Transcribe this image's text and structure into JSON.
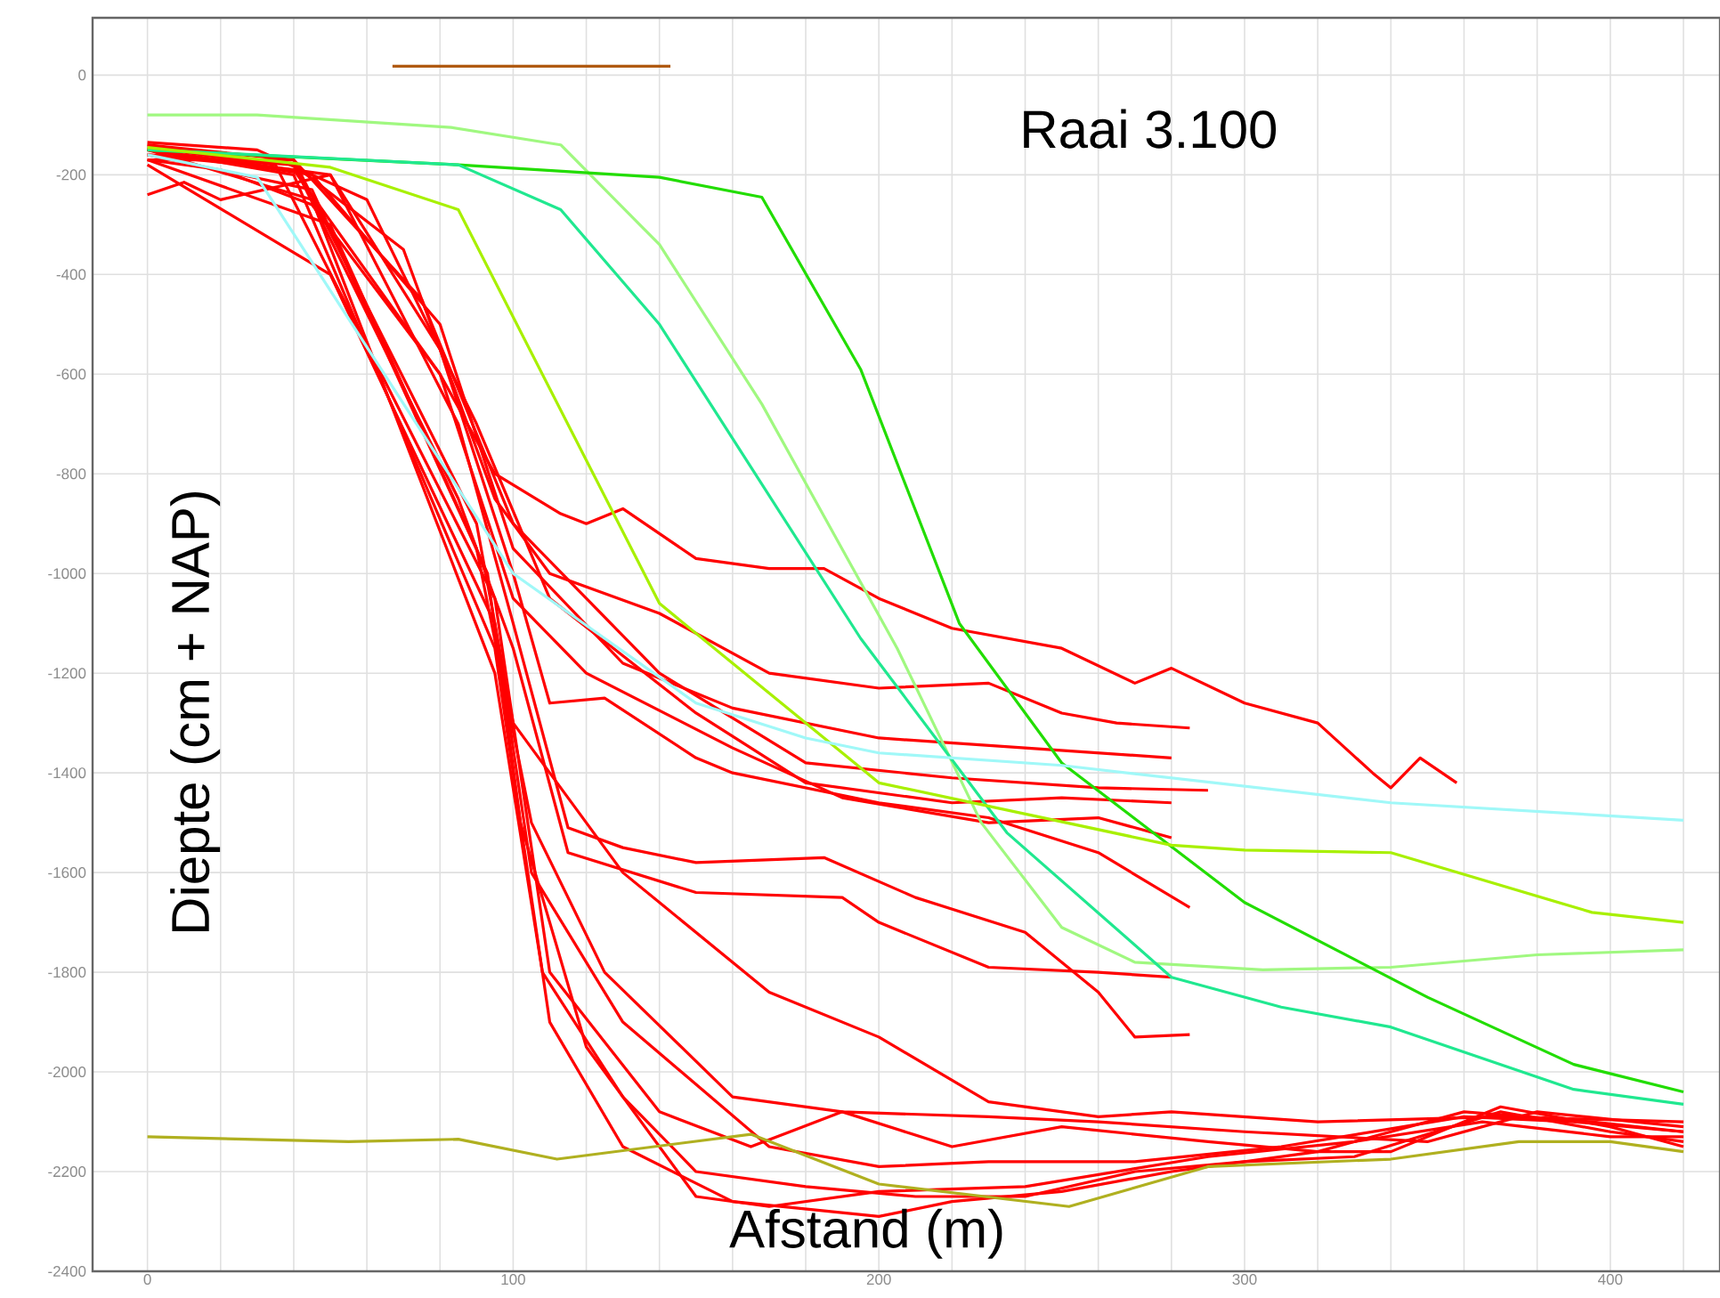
{
  "chart_data": {
    "type": "line",
    "title": "Raai 3.100",
    "xlabel": "Afstand (m)",
    "ylabel": "Diepte (cm + NAP)",
    "xlim": [
      -15,
      430
    ],
    "ylim": [
      -2400,
      115
    ],
    "xticks": [
      0,
      {
        "value": 20,
        "label": null
      },
      {
        "value": 40,
        "label": null
      },
      {
        "value": 60,
        "label": null
      },
      {
        "value": 80,
        "label": null
      },
      100,
      {
        "value": 120,
        "label": null
      },
      {
        "value": 140,
        "label": null
      },
      {
        "value": 160,
        "label": null
      },
      {
        "value": 180,
        "label": null
      },
      200,
      {
        "value": 220,
        "label": null
      },
      {
        "value": 240,
        "label": null
      },
      {
        "value": 260,
        "label": null
      },
      {
        "value": 280,
        "label": null
      },
      300,
      {
        "value": 320,
        "label": null
      },
      {
        "value": 340,
        "label": null
      },
      {
        "value": 360,
        "label": null
      },
      {
        "value": 380,
        "label": null
      },
      400,
      {
        "value": 420,
        "label": null
      }
    ],
    "yticks": [
      -2400,
      -2200,
      -2000,
      -1800,
      -1600,
      -1400,
      -1200,
      -1000,
      -800,
      -600,
      -400,
      -200,
      0
    ],
    "grid": true,
    "series": [
      {
        "color": "#b05a10",
        "x": [
          67,
          143
        ],
        "values": [
          18,
          18
        ]
      },
      {
        "color": "#ff0000",
        "x": [
          0,
          20,
          45,
          80,
          95,
          113,
          120,
          130,
          150,
          170,
          185,
          200,
          220,
          250,
          270,
          280,
          300,
          320,
          335,
          340,
          348,
          358
        ],
        "values": [
          -170,
          -190,
          -260,
          -600,
          -800,
          -880,
          -900,
          -870,
          -970,
          -990,
          -990,
          -1050,
          -1110,
          -1150,
          -1220,
          -1190,
          -1260,
          -1300,
          -1400,
          -1430,
          -1370,
          -1420
        ]
      },
      {
        "color": "#ff0000",
        "x": [
          0,
          40,
          70,
          95,
          110,
          140,
          170,
          200,
          230,
          250,
          265,
          285
        ],
        "values": [
          -160,
          -180,
          -350,
          -850,
          -1000,
          -1080,
          -1200,
          -1230,
          -1220,
          -1280,
          -1300,
          -1310
        ]
      },
      {
        "color": "#ff0000",
        "x": [
          0,
          45,
          80,
          100,
          130,
          160,
          200,
          240,
          280
        ],
        "values": [
          -150,
          -200,
          -500,
          -950,
          -1180,
          -1270,
          -1330,
          -1350,
          -1370
        ]
      },
      {
        "color": "#ff0000",
        "x": [
          0,
          40,
          75,
          100,
          140,
          180,
          220,
          260,
          290
        ],
        "values": [
          -140,
          -170,
          -450,
          -900,
          -1200,
          -1380,
          -1410,
          -1430,
          -1435
        ]
      },
      {
        "color": "#ff0000",
        "x": [
          0,
          30,
          60,
          90,
          110,
          150,
          180,
          220,
          250,
          280
        ],
        "values": [
          -135,
          -150,
          -250,
          -700,
          -1050,
          -1280,
          -1420,
          -1460,
          -1450,
          -1460
        ]
      },
      {
        "color": "#ff0000",
        "x": [
          0,
          40,
          80,
          100,
          120,
          160,
          190,
          230,
          260,
          280
        ],
        "values": [
          -160,
          -190,
          -600,
          -1050,
          -1200,
          -1350,
          -1450,
          -1500,
          -1490,
          -1530
        ]
      },
      {
        "color": "#ff0000",
        "x": [
          0,
          10,
          20,
          50,
          80,
          100,
          110,
          125,
          150,
          160,
          200,
          230,
          260,
          285
        ],
        "values": [
          -240,
          -215,
          -250,
          -200,
          -550,
          -1000,
          -1260,
          -1250,
          -1370,
          -1400,
          -1460,
          -1490,
          -1560,
          -1670
        ]
      },
      {
        "color": "#ff0000",
        "x": [
          0,
          50,
          85,
          100,
          115,
          130,
          150,
          185,
          210,
          240,
          260,
          270,
          285
        ],
        "values": [
          -150,
          -200,
          -700,
          -1100,
          -1510,
          -1550,
          -1580,
          -1570,
          -1650,
          -1720,
          -1840,
          -1930,
          -1925
        ]
      },
      {
        "color": "#ff0000",
        "x": [
          0,
          40,
          85,
          100,
          115,
          150,
          190,
          200,
          230,
          260,
          280
        ],
        "values": [
          -140,
          -180,
          -850,
          -1150,
          -1560,
          -1640,
          -1650,
          -1700,
          -1790,
          -1800,
          -1810
        ]
      },
      {
        "color": "#ff0000",
        "x": [
          0,
          50,
          90,
          105,
          125,
          160,
          190,
          230,
          260,
          300,
          350,
          380,
          420
        ],
        "values": [
          -170,
          -300,
          -950,
          -1500,
          -1800,
          -2050,
          -2080,
          -2090,
          -2100,
          -2120,
          -2140,
          -2080,
          -2110
        ]
      },
      {
        "color": "#ff0000",
        "x": [
          0,
          50,
          95,
          105,
          130,
          170,
          200,
          230,
          270,
          310,
          360,
          390,
          420
        ],
        "values": [
          -180,
          -400,
          -1100,
          -1600,
          -1900,
          -2150,
          -2190,
          -2180,
          -2180,
          -2150,
          -2090,
          -2100,
          -2120
        ]
      },
      {
        "color": "#ff0000",
        "x": [
          0,
          45,
          95,
          108,
          130,
          150,
          180,
          210,
          240,
          270,
          300,
          330,
          370,
          400,
          420
        ],
        "values": [
          -150,
          -250,
          -1200,
          -1800,
          -2050,
          -2200,
          -2230,
          -2250,
          -2250,
          -2200,
          -2180,
          -2170,
          -2080,
          -2120,
          -2140
        ]
      },
      {
        "color": "#ff0000",
        "x": [
          0,
          40,
          95,
          110,
          130,
          160,
          200,
          220,
          250,
          280,
          320,
          340,
          370,
          400,
          420
        ],
        "values": [
          -150,
          -200,
          -1150,
          -1900,
          -2150,
          -2260,
          -2290,
          -2260,
          -2240,
          -2200,
          -2160,
          -2160,
          -2070,
          -2110,
          -2150
        ]
      },
      {
        "color": "#ff0000",
        "x": [
          0,
          45,
          93,
          102,
          120,
          150,
          170,
          200,
          240,
          290,
          330,
          365,
          400,
          420
        ],
        "values": [
          -160,
          -230,
          -1000,
          -1500,
          -1950,
          -2250,
          -2270,
          -2240,
          -2230,
          -2170,
          -2140,
          -2100,
          -2130,
          -2130
        ]
      },
      {
        "color": "#ff0000",
        "x": [
          0,
          35,
          95,
          110,
          140,
          165,
          190,
          220,
          250,
          290,
          320,
          360,
          395,
          420
        ],
        "values": [
          -145,
          -180,
          -1050,
          -1800,
          -2080,
          -2150,
          -2080,
          -2150,
          -2110,
          -2140,
          -2160,
          -2080,
          -2100,
          -2120
        ]
      },
      {
        "color": "#ff0000",
        "x": [
          0,
          40,
          90,
          100,
          130,
          170,
          200,
          230,
          260,
          280,
          320,
          370,
          420
        ],
        "values": [
          -170,
          -170,
          -900,
          -1300,
          -1600,
          -1840,
          -1930,
          -2060,
          -2090,
          -2080,
          -2100,
          -2090,
          -2100
        ]
      },
      {
        "color": "#a0f880",
        "x": [
          0,
          30,
          83,
          113,
          140,
          168,
          205,
          228,
          250,
          270,
          305,
          340,
          380,
          420
        ],
        "values": [
          -80,
          -80,
          -105,
          -140,
          -340,
          -660,
          -1150,
          -1500,
          -1710,
          -1780,
          -1795,
          -1790,
          -1765,
          -1755
        ]
      },
      {
        "color": "#22dd00",
        "x": [
          0,
          85,
          140,
          168,
          195,
          222,
          250,
          300,
          350,
          390,
          420
        ],
        "values": [
          -150,
          -180,
          -205,
          -245,
          -590,
          -1100,
          -1380,
          -1660,
          -1850,
          -1985,
          -2040
        ]
      },
      {
        "color": "#20e890",
        "x": [
          0,
          30,
          85,
          113,
          140,
          195,
          235,
          280,
          310,
          340,
          390,
          420
        ],
        "values": [
          -150,
          -160,
          -180,
          -270,
          -500,
          -1130,
          -1520,
          -1810,
          -1870,
          -1910,
          -2035,
          -2065
        ]
      },
      {
        "color": "#a8f000",
        "x": [
          0,
          50,
          85,
          140,
          200,
          280,
          300,
          340,
          395,
          420
        ],
        "values": [
          -145,
          -185,
          -270,
          -1060,
          -1420,
          -1545,
          -1555,
          -1560,
          -1680,
          -1700
        ]
      },
      {
        "color": "#a0f8f8",
        "x": [
          0,
          30,
          100,
          150,
          180,
          200,
          250,
          340,
          420
        ],
        "values": [
          -160,
          -205,
          -1000,
          -1260,
          -1330,
          -1360,
          -1385,
          -1460,
          -1495
        ]
      },
      {
        "color": "#b0b020",
        "x": [
          0,
          55,
          85,
          112,
          165,
          200,
          252,
          290,
          340,
          375,
          400,
          420
        ],
        "values": [
          -2130,
          -2140,
          -2135,
          -2175,
          -2125,
          -2225,
          -2270,
          -2190,
          -2175,
          -2140,
          -2140,
          -2160
        ]
      }
    ]
  }
}
